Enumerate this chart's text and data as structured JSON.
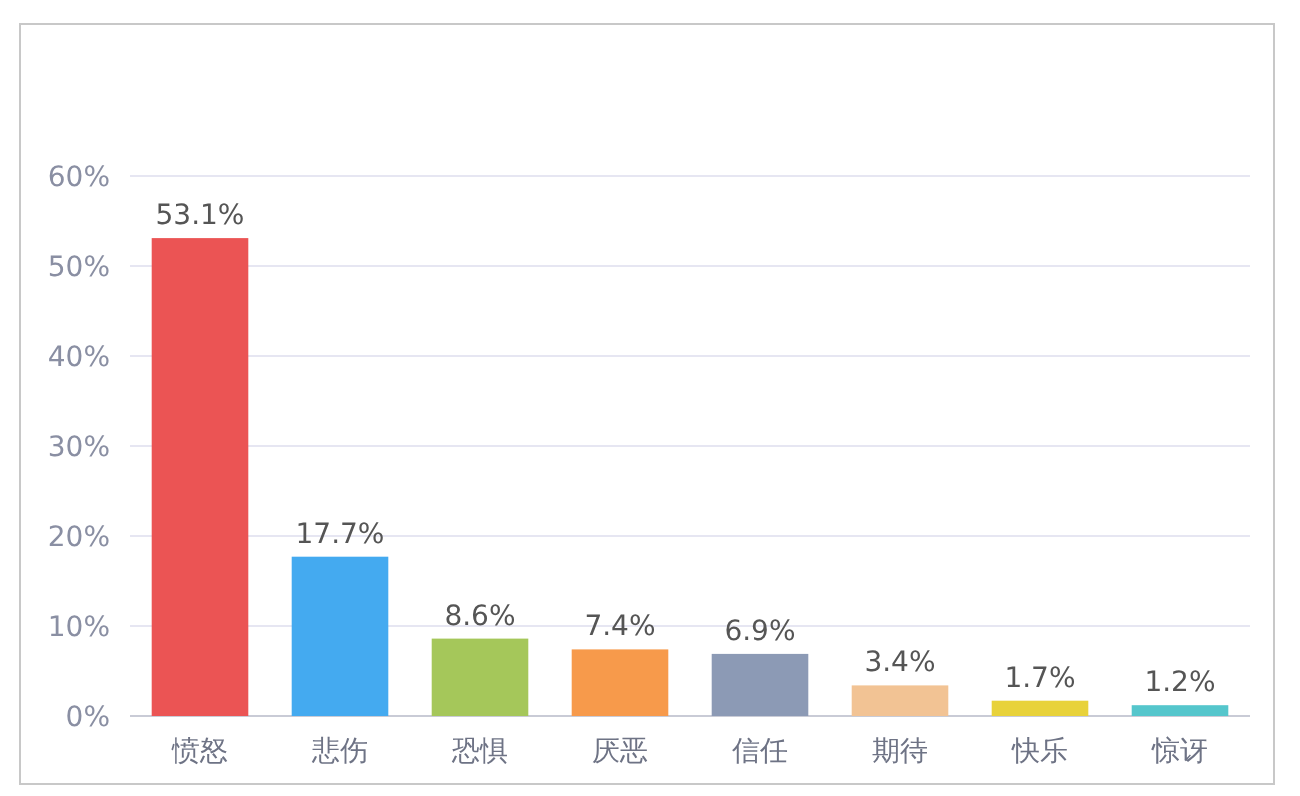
{
  "chart_data": {
    "type": "bar",
    "categories": [
      "愤怒",
      "悲伤",
      "恐惧",
      "厌恶",
      "信任",
      "期待",
      "快乐",
      "惊讶"
    ],
    "values": [
      53.1,
      17.7,
      8.6,
      7.4,
      6.9,
      3.4,
      1.7,
      1.2
    ],
    "value_labels": [
      "53.1%",
      "17.7%",
      "8.6%",
      "7.4%",
      "6.9%",
      "3.4%",
      "1.7%",
      "1.2%"
    ],
    "colors": [
      "#eb5454",
      "#44aaf0",
      "#a5c75a",
      "#f79a4b",
      "#8c9ab5",
      "#f2c394",
      "#e8d23a",
      "#55c6cc"
    ],
    "ylim": [
      0,
      60
    ],
    "yticks": [
      {
        "value": 0,
        "label": "0%"
      },
      {
        "value": 10,
        "label": "10%"
      },
      {
        "value": 20,
        "label": "20%"
      },
      {
        "value": 30,
        "label": "30%"
      },
      {
        "value": 40,
        "label": "40%"
      },
      {
        "value": 50,
        "label": "50%"
      },
      {
        "value": 60,
        "label": "60%"
      }
    ],
    "grid": "y"
  }
}
